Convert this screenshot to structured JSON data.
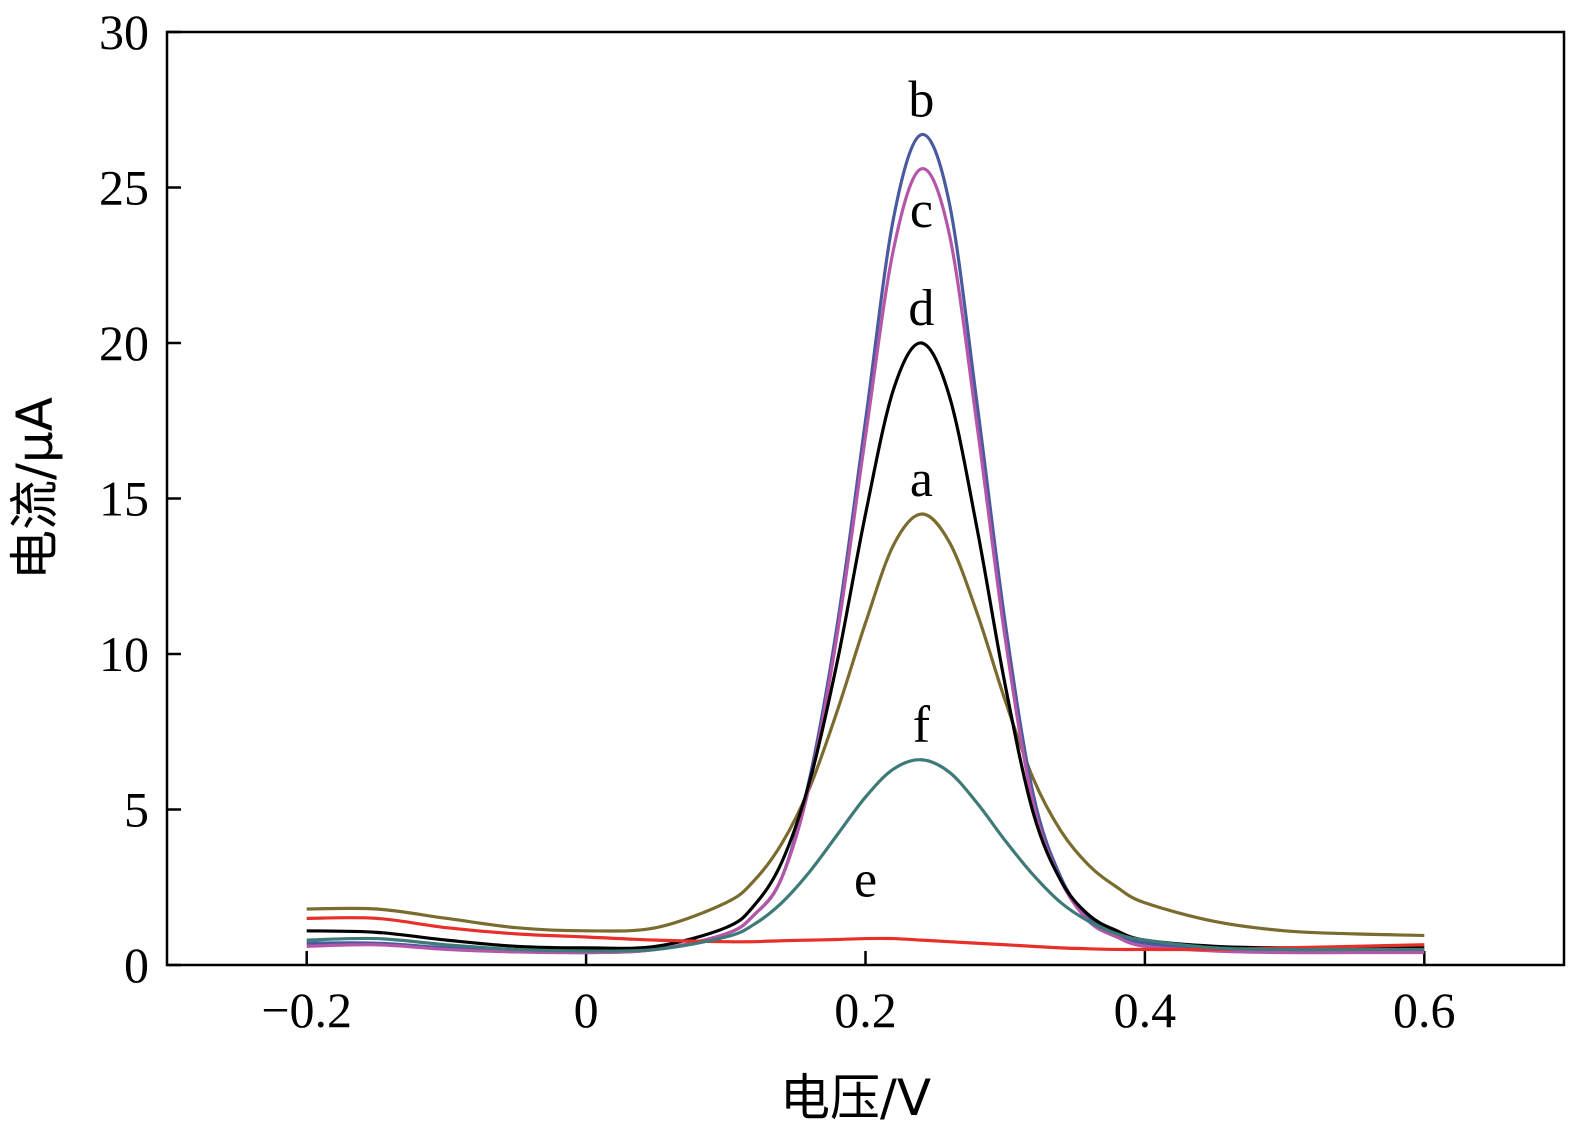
{
  "chart_data": {
    "type": "line",
    "title": "",
    "xlabel": "电压/V",
    "ylabel": "电流/μA",
    "xlim": [
      -0.3,
      0.7
    ],
    "ylim": [
      0,
      30
    ],
    "x_ticks": [
      -0.2,
      0,
      0.2,
      0.4,
      0.6
    ],
    "x_tick_labels": [
      "−0.2",
      "0",
      "0.2",
      "0.4",
      "0.6"
    ],
    "y_ticks": [
      0,
      5,
      10,
      15,
      20,
      25,
      30
    ],
    "y_tick_labels": [
      "0",
      "5",
      "10",
      "15",
      "20",
      "25",
      "30"
    ],
    "grid": false,
    "x": [
      -0.2,
      -0.15,
      -0.1,
      -0.05,
      0.0,
      0.05,
      0.1,
      0.12,
      0.14,
      0.16,
      0.18,
      0.2,
      0.22,
      0.24,
      0.26,
      0.28,
      0.3,
      0.32,
      0.34,
      0.36,
      0.38,
      0.4,
      0.45,
      0.5,
      0.55,
      0.6
    ],
    "series": [
      {
        "name": "a",
        "color": "#7a6b2e",
        "values": [
          1.8,
          1.8,
          1.5,
          1.2,
          1.1,
          1.2,
          2.0,
          2.7,
          3.9,
          5.7,
          8.2,
          11.0,
          13.5,
          14.5,
          13.6,
          11.3,
          8.5,
          6.0,
          4.3,
          3.2,
          2.5,
          2.0,
          1.4,
          1.1,
          1.0,
          0.95
        ]
      },
      {
        "name": "b",
        "color": "#4a5a9e",
        "values": [
          0.7,
          0.7,
          0.55,
          0.45,
          0.4,
          0.5,
          1.0,
          1.6,
          2.8,
          6.0,
          11.0,
          17.5,
          24.0,
          26.7,
          24.5,
          18.0,
          11.0,
          5.5,
          2.8,
          1.5,
          1.0,
          0.7,
          0.5,
          0.45,
          0.45,
          0.45
        ]
      },
      {
        "name": "c",
        "color": "#b556a8",
        "values": [
          0.6,
          0.65,
          0.5,
          0.42,
          0.4,
          0.5,
          1.0,
          1.6,
          2.8,
          5.8,
          10.7,
          17.0,
          23.0,
          25.6,
          23.5,
          17.3,
          10.5,
          5.2,
          2.7,
          1.4,
          0.9,
          0.6,
          0.45,
          0.4,
          0.4,
          0.4
        ]
      },
      {
        "name": "d",
        "color": "#000000",
        "values": [
          1.1,
          1.05,
          0.8,
          0.6,
          0.55,
          0.6,
          1.2,
          1.9,
          3.3,
          5.9,
          9.8,
          14.5,
          18.5,
          20.0,
          18.3,
          14.0,
          9.0,
          4.9,
          2.7,
          1.6,
          1.1,
          0.8,
          0.6,
          0.55,
          0.55,
          0.55
        ]
      },
      {
        "name": "e",
        "color": "#e8302a",
        "values": [
          1.5,
          1.5,
          1.2,
          1.0,
          0.9,
          0.8,
          0.75,
          0.75,
          0.78,
          0.8,
          0.82,
          0.85,
          0.85,
          0.8,
          0.75,
          0.7,
          0.65,
          0.6,
          0.55,
          0.52,
          0.5,
          0.5,
          0.5,
          0.55,
          0.6,
          0.65
        ]
      },
      {
        "name": "f",
        "color": "#3d7a78",
        "values": [
          0.8,
          0.85,
          0.65,
          0.5,
          0.45,
          0.5,
          0.9,
          1.3,
          2.0,
          3.0,
          4.2,
          5.4,
          6.3,
          6.6,
          6.2,
          5.2,
          4.0,
          2.9,
          2.0,
          1.4,
          1.0,
          0.8,
          0.55,
          0.5,
          0.5,
          0.5
        ]
      }
    ]
  }
}
